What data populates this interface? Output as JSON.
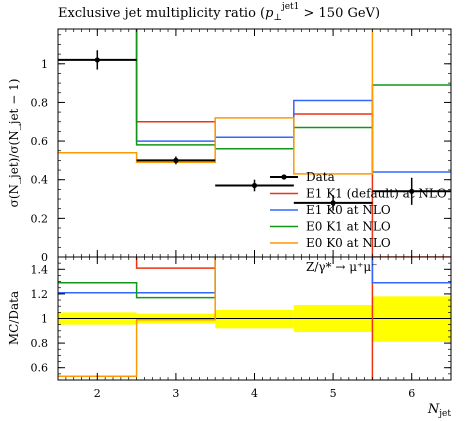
{
  "title": "Exclusive jet multiplicity ratio (p⊥jet1 > 150 GeV)",
  "title_parts": {
    "lead": "Exclusive jet multiplicity ratio (",
    "p": "p",
    "sub": "⊥",
    "sup": "jet1",
    "tail": " > 150 GeV)"
  },
  "process_label": "Z/γ* → μ⁺μ⁻",
  "chart_data": [
    {
      "type": "line",
      "title": "Exclusive jet multiplicity ratio (p⊥jet1 > 150 GeV)",
      "xlabel": "N_jet",
      "ylabel": "σ(N_jet)/σ(N_jet − 1)",
      "xlim": [
        1.5,
        6.5
      ],
      "ylim": [
        0.0,
        1.18
      ],
      "xticks": [
        "2",
        "3",
        "4",
        "5",
        "6"
      ],
      "yticks": [
        "0",
        "0.2",
        "0.4",
        "0.6",
        "0.8",
        "1"
      ],
      "legend_position": "right",
      "bin_edges": [
        1.5,
        2.5,
        3.5,
        4.5,
        5.5,
        6.5
      ],
      "data": {
        "name": "Data",
        "color": "#000000",
        "points": [
          {
            "x": 2,
            "y": 1.02,
            "yerr": 0.05
          },
          {
            "x": 3,
            "y": 0.5,
            "yerr": 0.02
          },
          {
            "x": 4,
            "y": 0.37,
            "yerr": 0.03
          },
          {
            "x": 5,
            "y": 0.28,
            "yerr": 0.04
          },
          {
            "x": 6,
            "y": 0.34,
            "yerr": 0.07
          }
        ]
      },
      "series": [
        {
          "name": "E1 K1 (default) at NLO",
          "color": "#ee3311",
          "values": [
            1.6,
            0.7,
            0.62,
            0.74,
            0.0
          ]
        },
        {
          "name": "E1 K0 at NLO",
          "color": "#3366ff",
          "values": [
            1.6,
            0.6,
            0.62,
            0.81,
            0.44
          ]
        },
        {
          "name": "E0 K1 at NLO",
          "color": "#109618",
          "values": [
            1.6,
            0.58,
            0.56,
            0.67,
            0.89
          ]
        },
        {
          "name": "E0 K0 at NLO",
          "color": "#ff9900",
          "values": [
            0.54,
            0.49,
            0.72,
            0.43,
            1.6
          ]
        }
      ]
    },
    {
      "type": "line",
      "ylabel": "MC/Data",
      "xlabel": "N_jet",
      "xlim": [
        1.5,
        6.5
      ],
      "ylim": [
        0.5,
        1.5
      ],
      "xticks": [
        "2",
        "3",
        "4",
        "5",
        "6"
      ],
      "yticks": [
        "0.6",
        "0.8",
        "1",
        "1.2",
        "1.4"
      ],
      "band_color": "#ffff00",
      "uncertainty_band": [
        {
          "lo": 0.95,
          "hi": 1.05
        },
        {
          "lo": 0.96,
          "hi": 1.04
        },
        {
          "lo": 0.92,
          "hi": 1.07
        },
        {
          "lo": 0.89,
          "hi": 1.11
        },
        {
          "lo": 0.81,
          "hi": 1.18
        }
      ],
      "series": [
        {
          "name": "E1 K1 (default) at NLO",
          "color": "#ee3311",
          "values": [
            1.6,
            1.41,
            1.6,
            1.6,
            0.0
          ]
        },
        {
          "name": "E1 K0 at NLO",
          "color": "#3366ff",
          "values": [
            1.21,
            1.21,
            1.6,
            1.6,
            1.29
          ]
        },
        {
          "name": "E0 K1 at NLO",
          "color": "#109618",
          "values": [
            1.29,
            1.17,
            1.6,
            1.6,
            1.6
          ]
        },
        {
          "name": "E0 K0 at NLO",
          "color": "#ff9900",
          "values": [
            0.53,
            0.99,
            1.6,
            1.6,
            1.6
          ]
        }
      ]
    }
  ]
}
